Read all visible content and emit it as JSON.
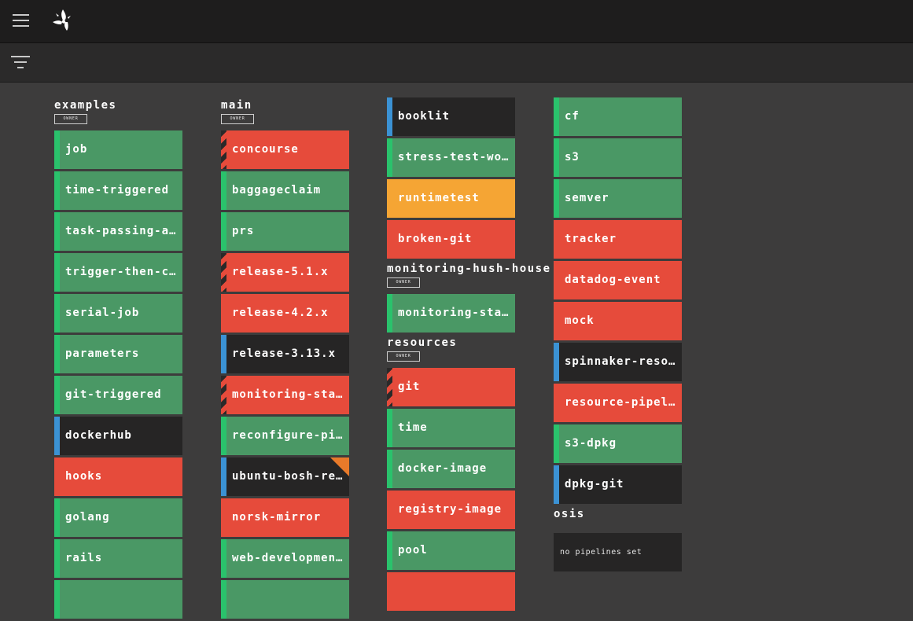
{
  "columns": [
    {
      "teams": [
        {
          "name": "examples",
          "badge": "OWNER",
          "pipelines": [
            {
              "name": "job",
              "status": "succeeded"
            },
            {
              "name": "time-triggered",
              "status": "succeeded"
            },
            {
              "name": "task-passing-ar…",
              "status": "succeeded"
            },
            {
              "name": "trigger-then-co…",
              "status": "succeeded"
            },
            {
              "name": "serial-job",
              "status": "succeeded"
            },
            {
              "name": "parameters",
              "status": "succeeded"
            },
            {
              "name": "git-triggered",
              "status": "succeeded"
            },
            {
              "name": "dockerhub",
              "status": "pending"
            },
            {
              "name": "hooks",
              "status": "failed"
            },
            {
              "name": "golang",
              "status": "succeeded"
            },
            {
              "name": "rails",
              "status": "succeeded"
            },
            {
              "name": "",
              "status": "succeeded"
            }
          ]
        }
      ]
    },
    {
      "teams": [
        {
          "name": "main",
          "badge": "OWNER",
          "pipelines": [
            {
              "name": "concourse",
              "status": "failed",
              "stripe": true
            },
            {
              "name": "baggageclaim",
              "status": "succeeded"
            },
            {
              "name": "prs",
              "status": "succeeded"
            },
            {
              "name": "release-5.1.x",
              "status": "failed",
              "stripe": true
            },
            {
              "name": "release-4.2.x",
              "status": "failed"
            },
            {
              "name": "release-3.13.x",
              "status": "pending"
            },
            {
              "name": "monitoring-stats",
              "status": "failed",
              "stripe": true
            },
            {
              "name": "reconfigure-pip…",
              "status": "succeeded"
            },
            {
              "name": "ubuntu-bosh-rel…",
              "status": "pending",
              "corner": true
            },
            {
              "name": "norsk-mirror",
              "status": "failed"
            },
            {
              "name": "web-development",
              "status": "succeeded"
            },
            {
              "name": "",
              "status": "succeeded"
            }
          ]
        }
      ]
    },
    {
      "teams": [
        {
          "name": "",
          "badge": "",
          "pipelines": [
            {
              "name": "booklit",
              "status": "pending"
            },
            {
              "name": "stress-test-wor…",
              "status": "succeeded"
            },
            {
              "name": "runtimetest",
              "status": "errored"
            },
            {
              "name": "broken-git",
              "status": "failed"
            }
          ]
        },
        {
          "name": "monitoring-hush-house",
          "badge": "OWNER",
          "pipelines": [
            {
              "name": "monitoring-stats",
              "status": "succeeded"
            }
          ]
        },
        {
          "name": "resources",
          "badge": "OWNER",
          "pipelines": [
            {
              "name": "git",
              "status": "failed",
              "stripe": true
            },
            {
              "name": "time",
              "status": "succeeded"
            },
            {
              "name": "docker-image",
              "status": "succeeded"
            },
            {
              "name": "registry-image",
              "status": "failed"
            },
            {
              "name": "pool",
              "status": "succeeded"
            },
            {
              "name": "",
              "status": "failed"
            }
          ]
        }
      ]
    },
    {
      "teams": [
        {
          "name": "",
          "badge": "",
          "pipelines": [
            {
              "name": "cf",
              "status": "succeeded"
            },
            {
              "name": "s3",
              "status": "succeeded"
            },
            {
              "name": "semver",
              "status": "succeeded"
            },
            {
              "name": "tracker",
              "status": "failed"
            },
            {
              "name": "datadog-event",
              "status": "failed"
            },
            {
              "name": "mock",
              "status": "failed"
            },
            {
              "name": "spinnaker-resou…",
              "status": "pending"
            },
            {
              "name": "resource-pipeli…",
              "status": "failed"
            },
            {
              "name": "s3-dpkg",
              "status": "succeeded"
            },
            {
              "name": "dpkg-git",
              "status": "pending"
            }
          ]
        },
        {
          "name": "osis",
          "badge": "",
          "empty_text": "no pipelines set",
          "pipelines": []
        }
      ]
    }
  ]
}
